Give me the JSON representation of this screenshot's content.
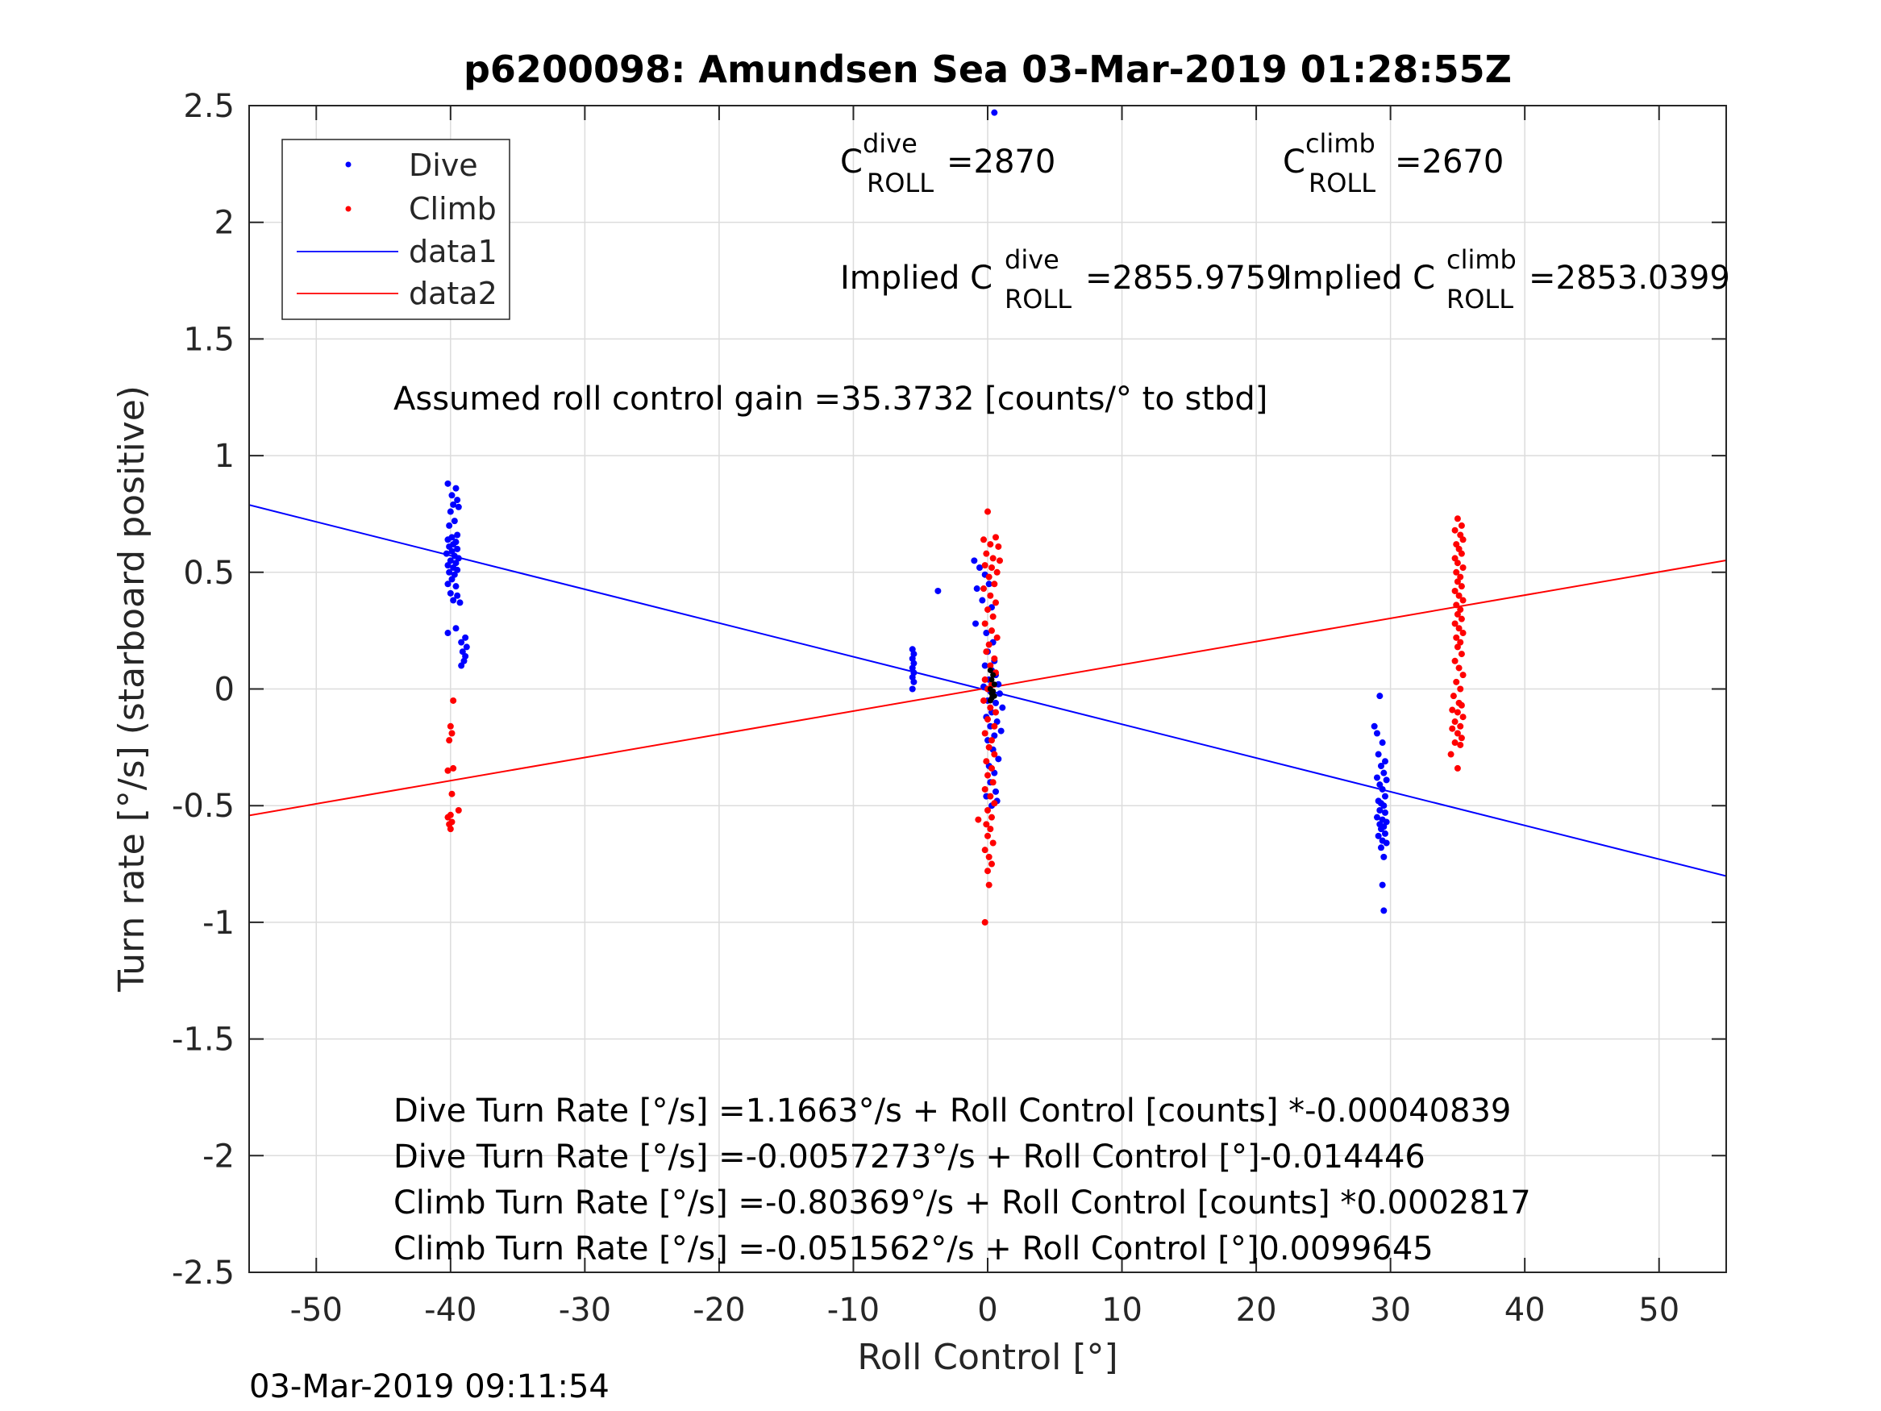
{
  "chart_data": {
    "type": "scatter",
    "title": "p6200098: Amundsen Sea 03-Mar-2019 01:28:55Z",
    "xlabel": "Roll Control [°]",
    "ylabel": "Turn rate [°/s] (starboard positive)",
    "xlim": [
      -55,
      55
    ],
    "ylim": [
      -2.5,
      2.5
    ],
    "xticks": [
      -50,
      -40,
      -30,
      -20,
      -10,
      0,
      10,
      20,
      30,
      40,
      50
    ],
    "yticks": [
      -2.5,
      -2,
      -1.5,
      -1,
      -0.5,
      0,
      0.5,
      1,
      1.5,
      2,
      2.5
    ],
    "xtick_labels": [
      "-50",
      "-40",
      "-30",
      "-20",
      "-10",
      "0",
      "10",
      "20",
      "30",
      "40",
      "50"
    ],
    "ytick_labels": [
      "-2.5",
      "-2",
      "-1.5",
      "-1",
      "-0.5",
      "0",
      "0.5",
      "1",
      "1.5",
      "2",
      "2.5"
    ],
    "grid": true,
    "legend_position": "top-left",
    "legend": [
      {
        "label": "Dive",
        "kind": "marker",
        "color": "#0000ff"
      },
      {
        "label": "Climb",
        "kind": "marker",
        "color": "#ff0000"
      },
      {
        "label": "data1",
        "kind": "line",
        "color": "#0000ff"
      },
      {
        "label": "data2",
        "kind": "line",
        "color": "#ff0000"
      }
    ],
    "lines": [
      {
        "name": "data1",
        "color": "#0000ff",
        "x": [
          -55,
          55
        ],
        "y": [
          0.7886,
          -0.8018
        ]
      },
      {
        "name": "data2",
        "color": "#ff0000",
        "x": [
          -55,
          55
        ],
        "y": [
          -0.542,
          0.5512
        ]
      }
    ],
    "series": [
      {
        "name": "Dive",
        "color": "#0000ff",
        "points": [
          [
            -40.2,
            0.88
          ],
          [
            -39.6,
            0.86
          ],
          [
            -39.9,
            0.83
          ],
          [
            -39.5,
            0.81
          ],
          [
            -39.8,
            0.79
          ],
          [
            -39.4,
            0.78
          ],
          [
            -40.0,
            0.76
          ],
          [
            -39.7,
            0.72
          ],
          [
            -40.1,
            0.7
          ],
          [
            -39.5,
            0.66
          ],
          [
            -39.9,
            0.65
          ],
          [
            -40.2,
            0.64
          ],
          [
            -39.6,
            0.63
          ],
          [
            -39.8,
            0.62
          ],
          [
            -40.1,
            0.61
          ],
          [
            -39.5,
            0.6
          ],
          [
            -39.9,
            0.59
          ],
          [
            -40.3,
            0.58
          ],
          [
            -39.7,
            0.57
          ],
          [
            -39.4,
            0.56
          ],
          [
            -40.0,
            0.55
          ],
          [
            -39.6,
            0.54
          ],
          [
            -40.2,
            0.53
          ],
          [
            -39.8,
            0.52
          ],
          [
            -39.5,
            0.51
          ],
          [
            -40.1,
            0.5
          ],
          [
            -39.7,
            0.49
          ],
          [
            -39.9,
            0.47
          ],
          [
            -40.2,
            0.45
          ],
          [
            -39.6,
            0.44
          ],
          [
            -40.0,
            0.41
          ],
          [
            -39.5,
            0.4
          ],
          [
            -39.8,
            0.38
          ],
          [
            -39.3,
            0.37
          ],
          [
            -39.6,
            0.26
          ],
          [
            -40.2,
            0.24
          ],
          [
            -38.9,
            0.22
          ],
          [
            -39.2,
            0.2
          ],
          [
            -38.8,
            0.18
          ],
          [
            -39.1,
            0.16
          ],
          [
            -38.9,
            0.14
          ],
          [
            -39.0,
            0.12
          ],
          [
            -39.2,
            0.1
          ],
          [
            -5.6,
            0.17
          ],
          [
            -5.5,
            0.15
          ],
          [
            -5.6,
            0.13
          ],
          [
            -5.5,
            0.11
          ],
          [
            -5.6,
            0.09
          ],
          [
            -5.5,
            0.07
          ],
          [
            -5.6,
            0.05
          ],
          [
            -5.5,
            0.03
          ],
          [
            -5.6,
            0.0
          ],
          [
            -3.7,
            0.42
          ],
          [
            0.5,
            2.47
          ],
          [
            -1.0,
            0.55
          ],
          [
            -0.6,
            0.52
          ],
          [
            -0.2,
            0.49
          ],
          [
            0.1,
            0.45
          ],
          [
            -0.8,
            0.43
          ],
          [
            -0.4,
            0.38
          ],
          [
            0.3,
            0.35
          ],
          [
            -0.9,
            0.28
          ],
          [
            -0.1,
            0.24
          ],
          [
            0.4,
            0.2
          ],
          [
            0.0,
            0.16
          ],
          [
            0.5,
            0.12
          ],
          [
            -0.2,
            0.1
          ],
          [
            0.3,
            0.08
          ],
          [
            0.6,
            0.06
          ],
          [
            0.1,
            0.04
          ],
          [
            0.8,
            0.02
          ],
          [
            -0.3,
            0.01
          ],
          [
            0.2,
            -0.01
          ],
          [
            0.9,
            -0.02
          ],
          [
            0.4,
            -0.03
          ],
          [
            0.0,
            -0.05
          ],
          [
            0.6,
            -0.06
          ],
          [
            1.1,
            -0.08
          ],
          [
            0.3,
            -0.1
          ],
          [
            -0.1,
            -0.12
          ],
          [
            0.7,
            -0.14
          ],
          [
            0.2,
            -0.16
          ],
          [
            1.0,
            -0.18
          ],
          [
            0.5,
            -0.2
          ],
          [
            0.0,
            -0.22
          ],
          [
            0.4,
            -0.26
          ],
          [
            0.8,
            -0.3
          ],
          [
            0.1,
            -0.33
          ],
          [
            0.5,
            -0.36
          ],
          [
            0.2,
            -0.4
          ],
          [
            0.6,
            -0.44
          ],
          [
            -0.1,
            -0.46
          ],
          [
            0.7,
            -0.48
          ],
          [
            0.3,
            -0.5
          ],
          [
            28.8,
            -0.16
          ],
          [
            29.2,
            -0.03
          ],
          [
            29.0,
            -0.19
          ],
          [
            29.4,
            -0.23
          ],
          [
            29.1,
            -0.28
          ],
          [
            29.6,
            -0.31
          ],
          [
            29.3,
            -0.33
          ],
          [
            29.5,
            -0.36
          ],
          [
            29.0,
            -0.38
          ],
          [
            29.7,
            -0.39
          ],
          [
            29.2,
            -0.41
          ],
          [
            29.4,
            -0.43
          ],
          [
            29.6,
            -0.46
          ],
          [
            29.1,
            -0.48
          ],
          [
            29.3,
            -0.49
          ],
          [
            29.5,
            -0.5
          ],
          [
            29.2,
            -0.52
          ],
          [
            29.6,
            -0.53
          ],
          [
            29.0,
            -0.55
          ],
          [
            29.4,
            -0.56
          ],
          [
            29.7,
            -0.57
          ],
          [
            29.2,
            -0.58
          ],
          [
            29.5,
            -0.59
          ],
          [
            29.3,
            -0.6
          ],
          [
            29.6,
            -0.62
          ],
          [
            29.1,
            -0.63
          ],
          [
            29.4,
            -0.65
          ],
          [
            29.7,
            -0.66
          ],
          [
            29.3,
            -0.68
          ],
          [
            29.5,
            -0.72
          ],
          [
            29.4,
            -0.84
          ],
          [
            29.5,
            -0.95
          ]
        ]
      },
      {
        "name": "Climb",
        "color": "#ff0000",
        "points": [
          [
            0.0,
            0.76
          ],
          [
            0.6,
            0.65
          ],
          [
            -0.3,
            0.64
          ],
          [
            0.2,
            0.62
          ],
          [
            0.8,
            0.61
          ],
          [
            -0.1,
            0.58
          ],
          [
            0.4,
            0.56
          ],
          [
            0.9,
            0.55
          ],
          [
            -0.2,
            0.53
          ],
          [
            0.3,
            0.52
          ],
          [
            0.7,
            0.5
          ],
          [
            0.1,
            0.48
          ],
          [
            0.5,
            0.45
          ],
          [
            -0.3,
            0.43
          ],
          [
            0.2,
            0.4
          ],
          [
            0.6,
            0.37
          ],
          [
            0.0,
            0.34
          ],
          [
            0.4,
            0.31
          ],
          [
            -0.2,
            0.28
          ],
          [
            0.3,
            0.25
          ],
          [
            0.7,
            0.22
          ],
          [
            0.1,
            0.19
          ],
          [
            -0.1,
            0.16
          ],
          [
            0.5,
            0.13
          ],
          [
            0.2,
            0.1
          ],
          [
            0.6,
            0.07
          ],
          [
            -0.2,
            0.04
          ],
          [
            0.3,
            0.02
          ],
          [
            0.0,
            0.0
          ],
          [
            0.4,
            -0.03
          ],
          [
            -0.3,
            -0.05
          ],
          [
            0.2,
            -0.08
          ],
          [
            0.6,
            -0.1
          ],
          [
            0.0,
            -0.13
          ],
          [
            0.5,
            -0.16
          ],
          [
            -0.2,
            -0.19
          ],
          [
            0.3,
            -0.22
          ],
          [
            0.1,
            -0.25
          ],
          [
            0.5,
            -0.28
          ],
          [
            -0.1,
            -0.31
          ],
          [
            0.3,
            -0.34
          ],
          [
            0.0,
            -0.37
          ],
          [
            0.4,
            -0.4
          ],
          [
            -0.2,
            -0.43
          ],
          [
            0.2,
            -0.46
          ],
          [
            0.5,
            -0.49
          ],
          [
            0.0,
            -0.52
          ],
          [
            0.3,
            -0.55
          ],
          [
            -0.7,
            -0.56
          ],
          [
            -0.1,
            -0.58
          ],
          [
            0.2,
            -0.6
          ],
          [
            0.0,
            -0.63
          ],
          [
            0.4,
            -0.66
          ],
          [
            -0.2,
            -0.69
          ],
          [
            0.1,
            -0.72
          ],
          [
            0.3,
            -0.75
          ],
          [
            0.0,
            -0.78
          ],
          [
            0.1,
            -0.84
          ],
          [
            -0.2,
            -1.0
          ],
          [
            -39.8,
            -0.05
          ],
          [
            -40.0,
            -0.16
          ],
          [
            -39.9,
            -0.19
          ],
          [
            -40.1,
            -0.22
          ],
          [
            -39.8,
            -0.34
          ],
          [
            -40.2,
            -0.35
          ],
          [
            -39.9,
            -0.45
          ],
          [
            -40.0,
            -0.54
          ],
          [
            -39.4,
            -0.52
          ],
          [
            -40.2,
            -0.55
          ],
          [
            -39.9,
            -0.57
          ],
          [
            -40.1,
            -0.58
          ],
          [
            -40.0,
            -0.6
          ],
          [
            35.0,
            0.73
          ],
          [
            35.3,
            0.7
          ],
          [
            34.8,
            0.68
          ],
          [
            35.2,
            0.66
          ],
          [
            35.4,
            0.64
          ],
          [
            34.9,
            0.62
          ],
          [
            35.1,
            0.6
          ],
          [
            35.3,
            0.58
          ],
          [
            34.8,
            0.56
          ],
          [
            35.0,
            0.54
          ],
          [
            35.4,
            0.52
          ],
          [
            34.9,
            0.5
          ],
          [
            35.2,
            0.48
          ],
          [
            35.0,
            0.46
          ],
          [
            35.3,
            0.44
          ],
          [
            34.8,
            0.42
          ],
          [
            35.1,
            0.4
          ],
          [
            35.4,
            0.38
          ],
          [
            34.9,
            0.36
          ],
          [
            35.2,
            0.34
          ],
          [
            35.0,
            0.32
          ],
          [
            35.3,
            0.3
          ],
          [
            34.8,
            0.28
          ],
          [
            35.1,
            0.26
          ],
          [
            35.4,
            0.24
          ],
          [
            34.9,
            0.22
          ],
          [
            35.2,
            0.2
          ],
          [
            35.0,
            0.18
          ],
          [
            35.3,
            0.15
          ],
          [
            34.8,
            0.12
          ],
          [
            35.1,
            0.09
          ],
          [
            35.4,
            0.06
          ],
          [
            34.9,
            0.03
          ],
          [
            35.2,
            0.0
          ],
          [
            34.7,
            -0.03
          ],
          [
            35.1,
            -0.06
          ],
          [
            35.3,
            -0.07
          ],
          [
            34.6,
            -0.09
          ],
          [
            35.0,
            -0.1
          ],
          [
            35.4,
            -0.12
          ],
          [
            34.8,
            -0.14
          ],
          [
            35.2,
            -0.16
          ],
          [
            34.6,
            -0.17
          ],
          [
            35.0,
            -0.19
          ],
          [
            35.3,
            -0.21
          ],
          [
            34.8,
            -0.23
          ],
          [
            35.2,
            -0.24
          ],
          [
            34.5,
            -0.28
          ],
          [
            35.0,
            -0.34
          ]
        ]
      }
    ],
    "black_marker": {
      "color": "#000000",
      "x": [
        0.2,
        0.4,
        0.3,
        0.5,
        0.2,
        0.4,
        0.3,
        0.5,
        0.3,
        0.2
      ],
      "y": [
        0.08,
        0.06,
        0.04,
        0.02,
        0.0,
        -0.01,
        -0.02,
        -0.03,
        -0.04,
        -0.05
      ]
    },
    "annotations": {
      "c_dive_base": "C",
      "c_dive_sup": "dive",
      "c_dive_sub": "ROLL",
      "c_dive_val": "=2870",
      "c_climb_base": "C",
      "c_climb_sup": "climb",
      "c_climb_sub": "ROLL",
      "c_climb_val": "=2670",
      "implied_dive_pre": "Implied C",
      "implied_dive_sup": "dive",
      "implied_dive_sub": "ROLL",
      "implied_dive_val": "=2855.9759",
      "implied_climb_pre": "Implied C",
      "implied_climb_sup": "climb",
      "implied_climb_sub": "ROLL",
      "implied_climb_val": "=2853.0399",
      "gain": "Assumed roll control gain =35.3732 [counts/° to stbd]",
      "eq1": "Dive Turn Rate [°/s] =1.1663°/s + Roll Control [counts] *-0.00040839",
      "eq2": "Dive Turn Rate [°/s] =-0.0057273°/s + Roll Control [°]-0.014446",
      "eq3": "Climb Turn Rate [°/s] =-0.80369°/s + Roll Control [counts] *0.0002817",
      "eq4": "Climb Turn Rate [°/s] =-0.051562°/s + Roll Control [°]0.0099645"
    }
  },
  "footer": {
    "timestamp": "03-Mar-2019 09:11:54"
  }
}
